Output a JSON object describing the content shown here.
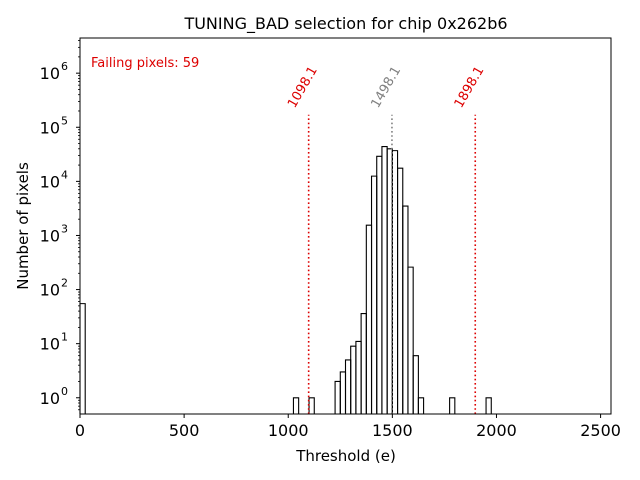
{
  "chart_data": {
    "type": "histogram",
    "title": "TUNING_BAD selection for chip 0x262b6",
    "xlabel": "Threshold (e)",
    "ylabel": "Number of pixels",
    "xlim": [
      0,
      2550
    ],
    "ylim_log10": [
      -0.3,
      6.65
    ],
    "yscale": "log",
    "x_ticks": [
      0,
      500,
      1000,
      1500,
      2000,
      2500
    ],
    "x_tick_labels": [
      "0",
      "500",
      "1000",
      "1500",
      "2000",
      "2500"
    ],
    "y_ticks_exp": [
      0,
      1,
      2,
      3,
      4,
      5,
      6
    ],
    "y_tick_base": "10",
    "bin_width": 25,
    "bins": [
      {
        "x0": 0,
        "count": 55
      },
      {
        "x0": 1025,
        "count": 1
      },
      {
        "x0": 1100,
        "count": 1
      },
      {
        "x0": 1225,
        "count": 2
      },
      {
        "x0": 1250,
        "count": 3
      },
      {
        "x0": 1275,
        "count": 5
      },
      {
        "x0": 1300,
        "count": 9
      },
      {
        "x0": 1325,
        "count": 11
      },
      {
        "x0": 1350,
        "count": 36
      },
      {
        "x0": 1375,
        "count": 1550
      },
      {
        "x0": 1400,
        "count": 12500
      },
      {
        "x0": 1425,
        "count": 29000
      },
      {
        "x0": 1450,
        "count": 44000
      },
      {
        "x0": 1475,
        "count": 40000
      },
      {
        "x0": 1500,
        "count": 37000
      },
      {
        "x0": 1525,
        "count": 17500
      },
      {
        "x0": 1550,
        "count": 3500
      },
      {
        "x0": 1575,
        "count": 260
      },
      {
        "x0": 1600,
        "count": 6
      },
      {
        "x0": 1625,
        "count": 1
      },
      {
        "x0": 1775,
        "count": 1
      },
      {
        "x0": 1950,
        "count": 1
      }
    ],
    "vlines": [
      {
        "x": 1098.1,
        "label": "1098.1",
        "color": "#dd0000",
        "style": "dotted"
      },
      {
        "x": 1498.1,
        "label": "1498.1",
        "color": "#808080",
        "style": "dotted"
      },
      {
        "x": 1898.1,
        "label": "1898.1",
        "color": "#dd0000",
        "style": "dotted"
      }
    ],
    "vline_top_count": 170000,
    "annotation": {
      "text": "Failing pixels: 59",
      "color": "#dd0000"
    },
    "line_color": "#000000"
  }
}
